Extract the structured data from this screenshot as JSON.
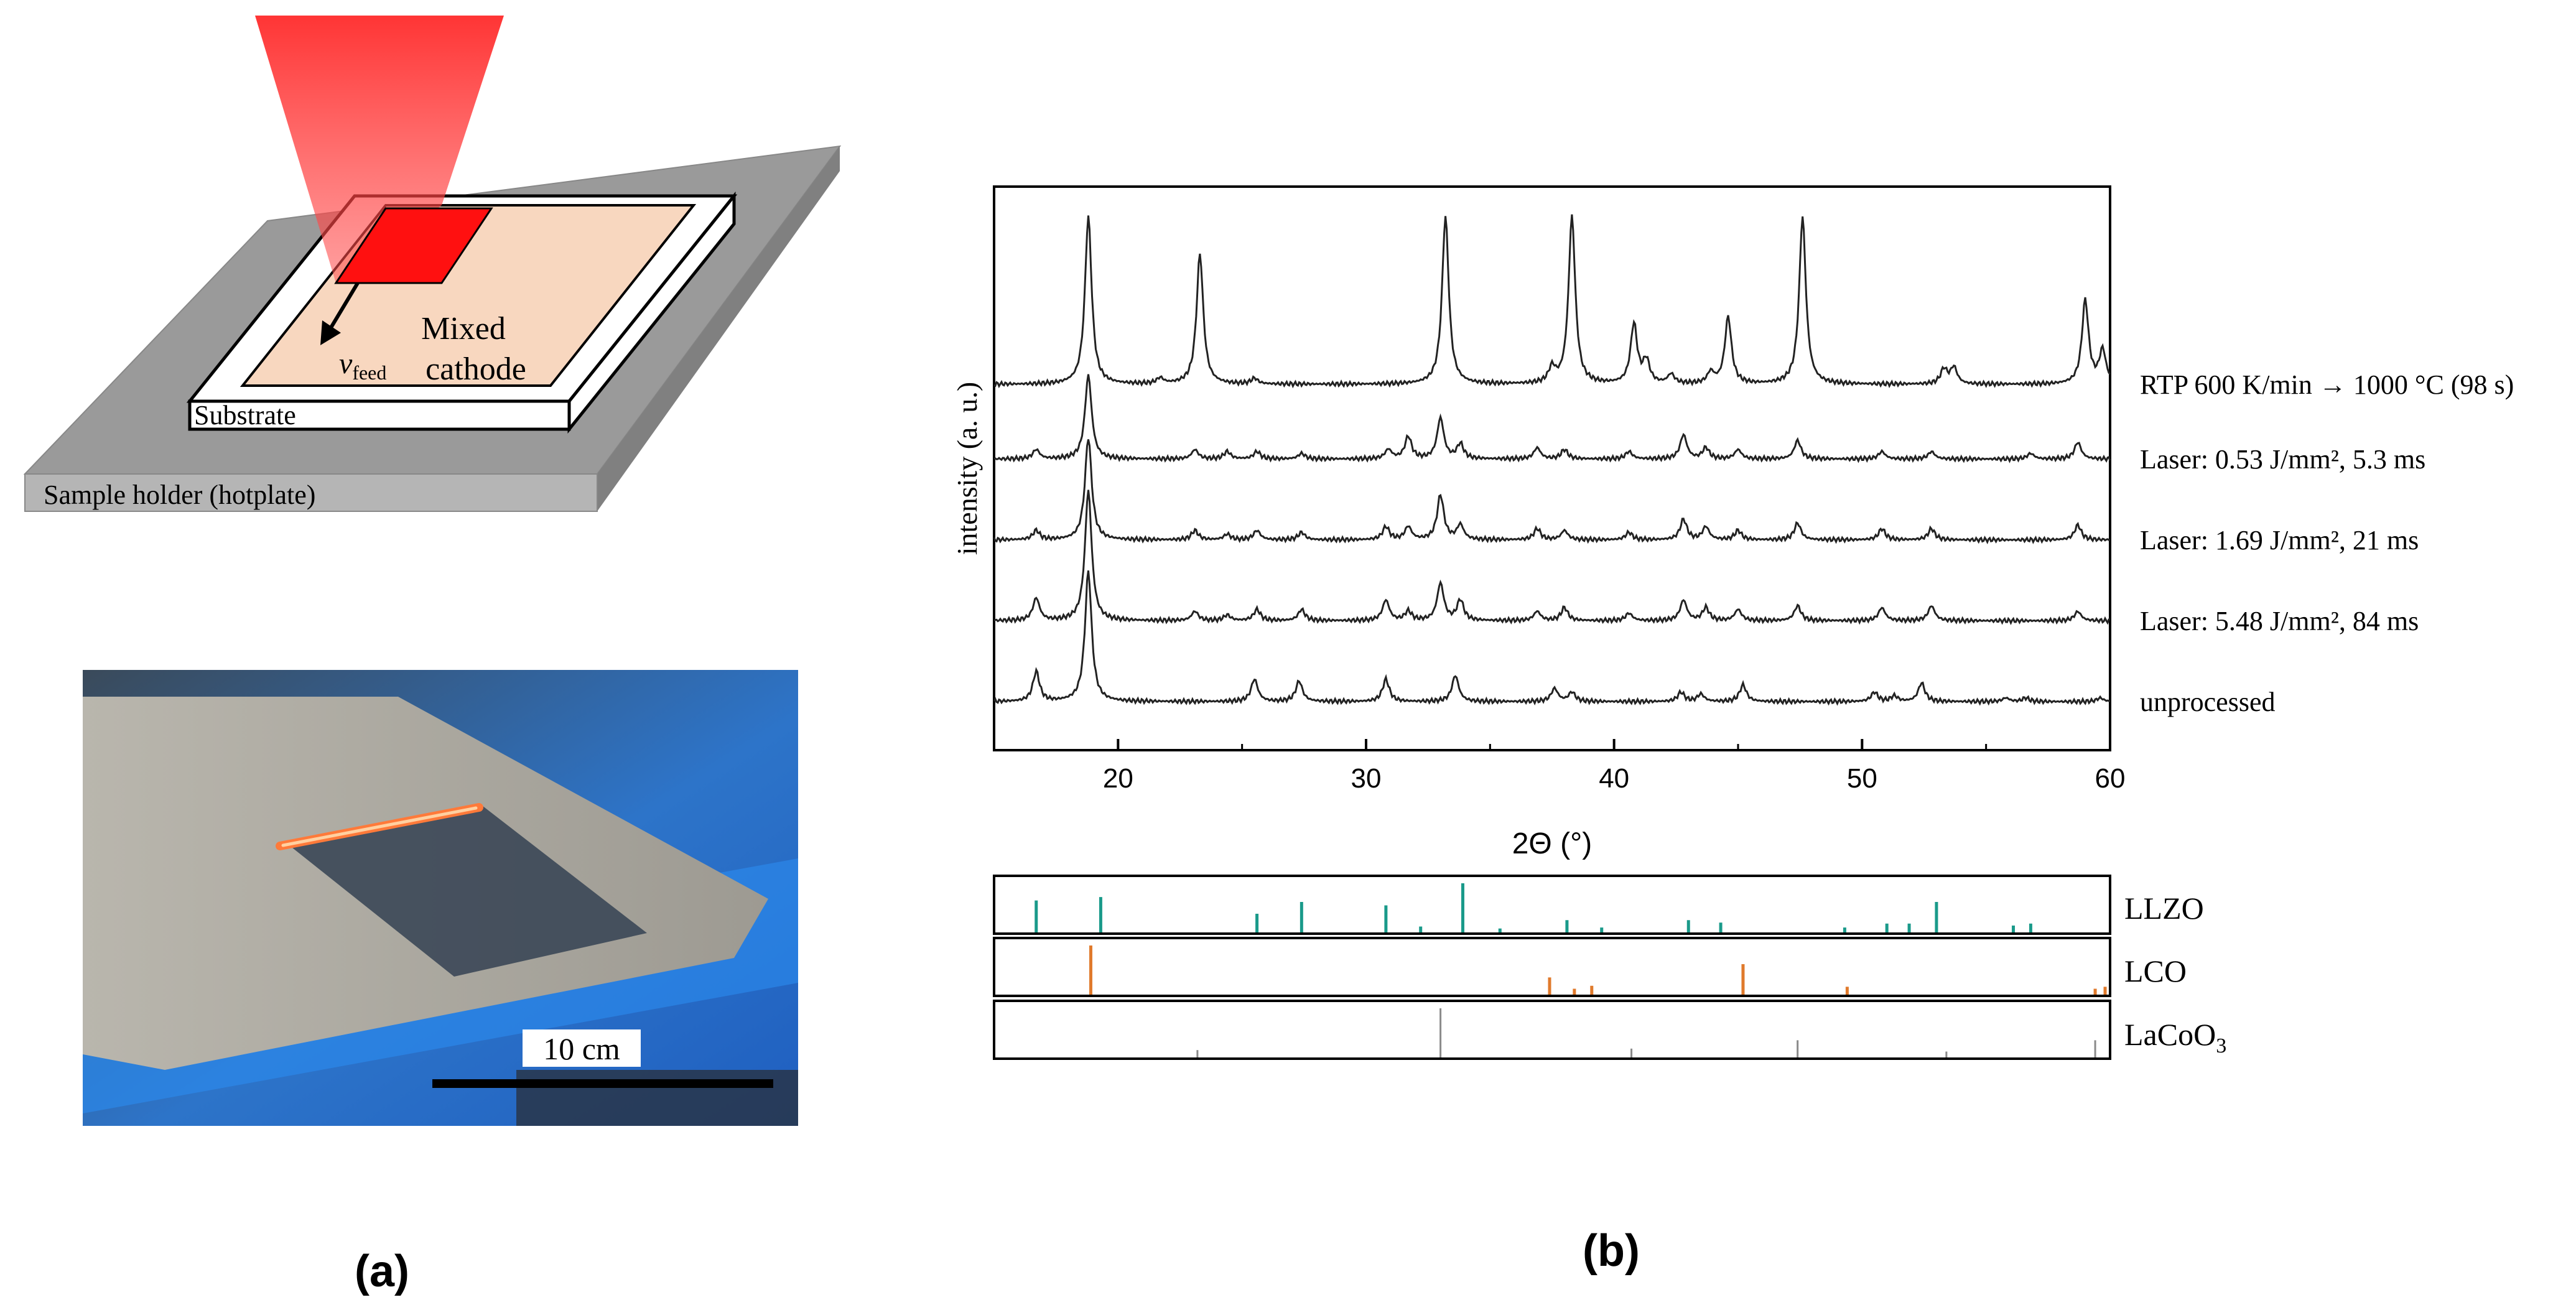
{
  "panel_a": {
    "schematic": {
      "velocity_label_main": "v",
      "velocity_label_sub": "feed",
      "mixed_cathode_line1": "Mixed",
      "mixed_cathode_line2": "cathode",
      "substrate_label": "Substrate",
      "holder_label": "Sample holder (hotplate)"
    },
    "photo": {
      "scale_bar_label": "10 cm"
    },
    "caption": "(a)"
  },
  "panel_b": {
    "caption": "(b)",
    "colors": {
      "trace": "#222222",
      "LLZO": "#1a9a8a",
      "LCO": "#e07a2c",
      "LaCoO3": "#8a8a8a"
    },
    "chart_data": [
      {
        "type": "line",
        "xlabel": "2Θ (°)",
        "ylabel": "intensity (a. u.)",
        "xlim": [
          15,
          60
        ],
        "xticks": [
          "20",
          "30",
          "40",
          "50",
          "60"
        ],
        "y_units": "arbitrary, stacked traces",
        "series": [
          {
            "name": "RTP 600 K/min → 1000 °C (98 s)",
            "baseline": 4,
            "peaks": [
              [
                18.8,
                9
              ],
              [
                21.7,
                0.3
              ],
              [
                23.3,
                7
              ],
              [
                25.5,
                0.3
              ],
              [
                33.2,
                9
              ],
              [
                37.5,
                0.8
              ],
              [
                38.3,
                9
              ],
              [
                40.8,
                3.2
              ],
              [
                41.3,
                1.2
              ],
              [
                42.3,
                0.5
              ],
              [
                43.9,
                0.6
              ],
              [
                44.6,
                3.6
              ],
              [
                47.6,
                9
              ],
              [
                53.3,
                0.8
              ],
              [
                53.7,
                0.9
              ],
              [
                59.0,
                4.5
              ],
              [
                59.7,
                1.8
              ]
            ]
          },
          {
            "name": "Laser: 0.53 J/mm², 5.3 ms",
            "baseline": 3,
            "peaks": [
              [
                16.7,
                0.5
              ],
              [
                18.8,
                4.5
              ],
              [
                23.1,
                0.5
              ],
              [
                24.4,
                0.4
              ],
              [
                25.6,
                0.4
              ],
              [
                27.4,
                0.3
              ],
              [
                30.9,
                0.5
              ],
              [
                31.7,
                1.2
              ],
              [
                33.0,
                2.2
              ],
              [
                33.8,
                0.8
              ],
              [
                36.9,
                0.6
              ],
              [
                38.0,
                0.5
              ],
              [
                40.6,
                0.4
              ],
              [
                42.8,
                1.3
              ],
              [
                43.7,
                0.6
              ],
              [
                45.0,
                0.5
              ],
              [
                47.4,
                1.0
              ],
              [
                50.8,
                0.4
              ],
              [
                52.8,
                0.4
              ],
              [
                56.8,
                0.3
              ],
              [
                58.7,
                0.9
              ]
            ]
          },
          {
            "name": "Laser: 1.69 J/mm², 21 ms",
            "baseline": 2,
            "peaks": [
              [
                16.7,
                0.5
              ],
              [
                18.8,
                5.5
              ],
              [
                23.1,
                0.5
              ],
              [
                24.4,
                0.3
              ],
              [
                25.6,
                0.5
              ],
              [
                27.4,
                0.4
              ],
              [
                30.8,
                0.7
              ],
              [
                31.7,
                0.7
              ],
              [
                33.0,
                2.4
              ],
              [
                33.8,
                0.8
              ],
              [
                36.9,
                0.6
              ],
              [
                38.0,
                0.5
              ],
              [
                40.6,
                0.4
              ],
              [
                42.8,
                1.1
              ],
              [
                43.7,
                0.7
              ],
              [
                45.0,
                0.5
              ],
              [
                47.4,
                0.9
              ],
              [
                50.8,
                0.6
              ],
              [
                52.8,
                0.6
              ],
              [
                58.7,
                0.8
              ]
            ]
          },
          {
            "name": "Laser: 5.48 J/mm², 84 ms",
            "baseline": 1,
            "peaks": [
              [
                16.7,
                1.2
              ],
              [
                18.8,
                7
              ],
              [
                23.1,
                0.5
              ],
              [
                24.4,
                0.3
              ],
              [
                25.6,
                0.6
              ],
              [
                27.4,
                0.6
              ],
              [
                30.8,
                1.1
              ],
              [
                31.7,
                0.5
              ],
              [
                33.0,
                2.0
              ],
              [
                33.8,
                1.1
              ],
              [
                36.9,
                0.5
              ],
              [
                38.0,
                0.7
              ],
              [
                40.6,
                0.4
              ],
              [
                42.8,
                1.1
              ],
              [
                43.7,
                0.7
              ],
              [
                45.0,
                0.6
              ],
              [
                47.4,
                0.8
              ],
              [
                50.8,
                0.7
              ],
              [
                52.8,
                0.8
              ],
              [
                58.7,
                0.5
              ]
            ]
          },
          {
            "name": "unprocessed",
            "baseline": 0,
            "peaks": [
              [
                16.7,
                1.6
              ],
              [
                18.8,
                7
              ],
              [
                25.5,
                1.2
              ],
              [
                27.3,
                1.1
              ],
              [
                30.8,
                1.2
              ],
              [
                33.6,
                1.4
              ],
              [
                37.6,
                0.7
              ],
              [
                38.3,
                0.5
              ],
              [
                42.7,
                0.5
              ],
              [
                43.5,
                0.4
              ],
              [
                45.2,
                0.9
              ],
              [
                50.5,
                0.5
              ],
              [
                51.3,
                0.3
              ],
              [
                52.4,
                1.0
              ],
              [
                55.8,
                0.2
              ],
              [
                56.6,
                0.2
              ],
              [
                59.6,
                0.2
              ]
            ]
          }
        ]
      },
      {
        "type": "bar",
        "subtype": "reference stick pattern",
        "xlim": [
          15,
          60
        ],
        "series": [
          {
            "name": "LLZO",
            "x": [
              16.7,
              19.3,
              25.6,
              27.4,
              30.8,
              32.2,
              33.9,
              35.4,
              38.1,
              39.5,
              43.0,
              44.3,
              49.3,
              51.0,
              51.9,
              53.0,
              56.1,
              56.8
            ],
            "values": [
              0.65,
              0.72,
              0.38,
              0.62,
              0.55,
              0.12,
              1.0,
              0.08,
              0.25,
              0.1,
              0.25,
              0.2,
              0.1,
              0.18,
              0.18,
              0.62,
              0.14,
              0.18
            ]
          },
          {
            "name": "LCO",
            "x": [
              18.9,
              37.4,
              38.4,
              39.1,
              45.2,
              49.4,
              59.4,
              59.8
            ],
            "values": [
              1.0,
              0.35,
              0.12,
              0.18,
              0.62,
              0.16,
              0.12,
              0.16
            ]
          },
          {
            "name": "LaCoO3",
            "x": [
              23.2,
              33.0,
              40.7,
              47.4,
              53.4,
              59.4
            ],
            "values": [
              0.15,
              1.0,
              0.18,
              0.35,
              0.12,
              0.35
            ]
          }
        ],
        "labels": [
          "LLZO",
          "LCO",
          "LaCoO",
          "3"
        ]
      }
    ]
  }
}
